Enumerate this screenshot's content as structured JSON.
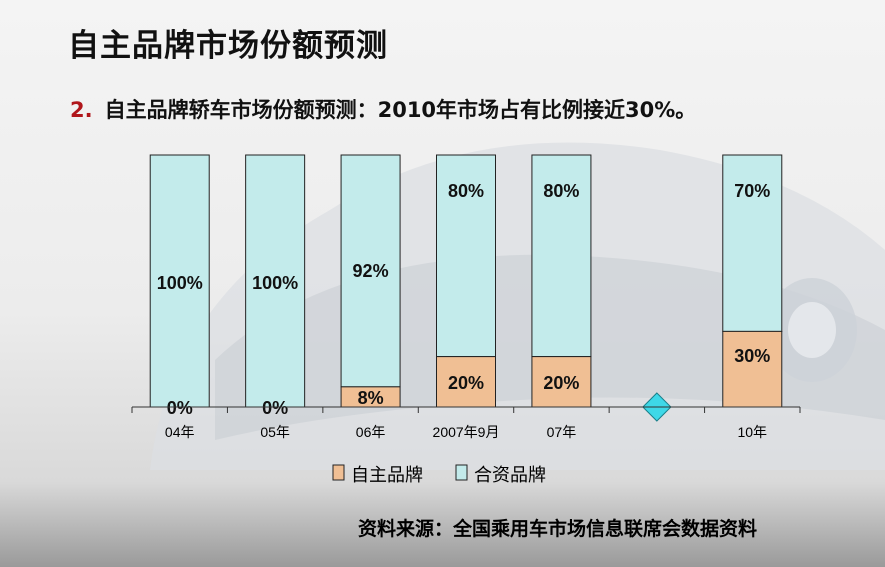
{
  "title": "自主品牌市场份额预测",
  "subtitle": {
    "number": "2.",
    "text": "自主品牌轿车市场份额预测：2010年市场占有比例接近30%。"
  },
  "source": "资料来源：全国乘用车市场信息联席会数据资料",
  "colors": {
    "domestic": "#f0bf94",
    "foreign": "#c3ebeb",
    "marker": "#3ed8e8"
  },
  "chart_data": {
    "type": "bar",
    "stacked": true,
    "categories": [
      "04年",
      "05年",
      "06年",
      "2007年9月",
      "07年",
      "",
      "10年"
    ],
    "series": [
      {
        "name": "自主品牌",
        "values": [
          0,
          0,
          8,
          20,
          20,
          null,
          30
        ],
        "labels": [
          "0%",
          "0%",
          "8%",
          "20%",
          "20%",
          "",
          "30%"
        ]
      },
      {
        "name": "合资品牌",
        "values": [
          100,
          100,
          92,
          80,
          80,
          null,
          70
        ],
        "labels": [
          "100%",
          "100%",
          "92%",
          "80%",
          "80%",
          "",
          "70%"
        ]
      }
    ],
    "ylim": [
      0,
      100
    ],
    "grid": false,
    "legend": "bottom",
    "marker": {
      "category_index": 5,
      "shape": "diamond"
    }
  }
}
